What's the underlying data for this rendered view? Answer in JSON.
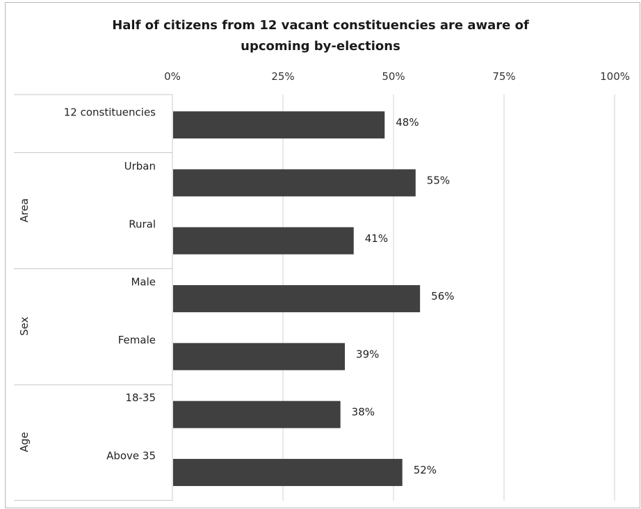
{
  "chart_data": {
    "type": "bar",
    "orientation": "horizontal",
    "title_lines": [
      "Half of citizens from 12 vacant constituencies are aware of",
      "upcoming by-elections"
    ],
    "xlim": [
      0,
      100
    ],
    "x_ticks": [
      "0%",
      "25%",
      "50%",
      "75%",
      "100%"
    ],
    "x_tick_values": [
      0,
      25,
      50,
      75,
      100
    ],
    "grid": true,
    "bar_color": "#404040",
    "groups": [
      {
        "label": "",
        "categories": [
          "12 constituencies"
        ],
        "values": [
          48
        ],
        "value_labels": [
          "48%"
        ]
      },
      {
        "label": "Area",
        "categories": [
          "Urban",
          "Rural"
        ],
        "values": [
          55,
          41
        ],
        "value_labels": [
          "55%",
          "41%"
        ]
      },
      {
        "label": "Sex",
        "categories": [
          "Male",
          "Female"
        ],
        "values": [
          56,
          39
        ],
        "value_labels": [
          "56%",
          "39%"
        ]
      },
      {
        "label": "Age",
        "categories": [
          "18-35",
          "Above 35"
        ],
        "values": [
          38,
          52
        ],
        "value_labels": [
          "38%",
          "52%"
        ]
      }
    ]
  }
}
